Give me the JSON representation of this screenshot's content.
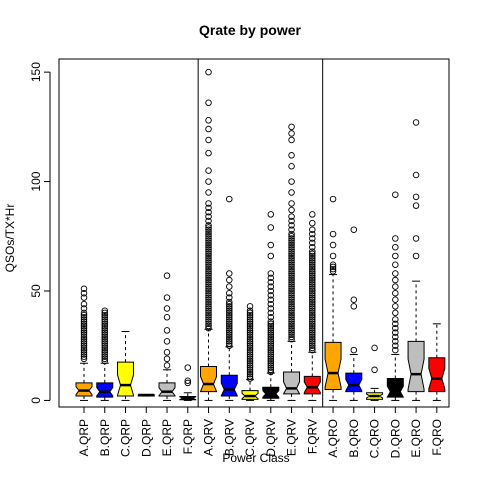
{
  "chart_data": {
    "type": "boxplot",
    "title": "Qrate by power",
    "xlabel": "Power Class",
    "ylabel": "QSOs/TX*Hr",
    "ylim": [
      -3,
      156
    ],
    "yticks": [
      0,
      50,
      100,
      150
    ],
    "notched": true,
    "group_separators_after": [
      6,
      12
    ],
    "categories": [
      {
        "label": "A.QRP",
        "color": "#FFA500",
        "whisker_low": 0,
        "q1": 2,
        "median": 4.5,
        "q3": 8,
        "whisker_high": 17,
        "outliers": [
          19,
          20,
          21,
          22,
          23,
          24,
          25,
          26,
          27,
          28,
          29,
          30,
          31,
          32,
          33,
          34,
          35,
          36,
          37,
          38,
          39,
          40,
          42,
          44,
          47,
          49,
          51
        ]
      },
      {
        "label": "B.QRP",
        "color": "#0000FF",
        "whisker_low": 0,
        "q1": 1.5,
        "median": 4,
        "q3": 8,
        "whisker_high": 17,
        "outliers": [
          18,
          19,
          20,
          21,
          22,
          23,
          24,
          25,
          26,
          27,
          28,
          29,
          30,
          31,
          32,
          33,
          34,
          35,
          36,
          37,
          38,
          39,
          40,
          41
        ]
      },
      {
        "label": "C.QRP",
        "color": "#FFFF00",
        "whisker_low": 0,
        "q1": 2,
        "median": 7,
        "q3": 17.5,
        "whisker_high": 31.5,
        "outliers": []
      },
      {
        "label": "D.QRP",
        "color": "#000000",
        "whisker_low": 2,
        "q1": 2,
        "median": 2.5,
        "q3": 2.5,
        "whisker_high": 2.5,
        "outliers": []
      },
      {
        "label": "E.QRP",
        "color": "#BEBEBE",
        "whisker_low": 0,
        "q1": 2,
        "median": 4,
        "q3": 8,
        "whisker_high": 14,
        "outliers": [
          16,
          19,
          22,
          27,
          32,
          38,
          42,
          47,
          57
        ]
      },
      {
        "label": "F.QRP",
        "color": "#FF0000",
        "whisker_low": 0,
        "q1": 0.3,
        "median": 1,
        "q3": 1.8,
        "whisker_high": 3.5,
        "outliers": [
          8,
          9,
          15
        ]
      },
      {
        "label": "A.QRV",
        "color": "#FFA500",
        "whisker_low": 0,
        "q1": 4,
        "median": 7.5,
        "q3": 15.5,
        "whisker_high": 32.5,
        "outliers": [
          33,
          34,
          35,
          36,
          37,
          38,
          39,
          40,
          41,
          42,
          43,
          44,
          45,
          46,
          47,
          48,
          49,
          50,
          51,
          52,
          53,
          54,
          55,
          56,
          57,
          58,
          59,
          60,
          61,
          62,
          63,
          64,
          65,
          66,
          67,
          68,
          69,
          70,
          71,
          72,
          73,
          74,
          75,
          76,
          77,
          78,
          79,
          80,
          82,
          84,
          86,
          88,
          90,
          95,
          100,
          105,
          113,
          119,
          124,
          128,
          136,
          150
        ]
      },
      {
        "label": "B.QRV",
        "color": "#0000FF",
        "whisker_low": 0,
        "q1": 2,
        "median": 5,
        "q3": 11.5,
        "whisker_high": 24.5,
        "outliers": [
          25,
          26,
          27,
          28,
          29,
          30,
          31,
          32,
          33,
          34,
          35,
          36,
          37,
          38,
          39,
          40,
          41,
          42,
          43,
          44,
          45,
          47,
          49,
          52,
          55,
          58,
          92
        ]
      },
      {
        "label": "C.QRV",
        "color": "#FFFF00",
        "whisker_low": 0,
        "q1": 0.5,
        "median": 2,
        "q3": 4.5,
        "whisker_high": 9.5,
        "outliers": [
          10,
          11,
          12,
          13,
          14,
          15,
          16,
          17,
          18,
          19,
          20,
          21,
          22,
          23,
          24,
          25,
          26,
          27,
          28,
          29,
          30,
          31,
          32,
          33,
          34,
          35,
          36,
          37,
          38,
          39,
          40,
          41,
          43
        ]
      },
      {
        "label": "D.QRV",
        "color": "#000000",
        "whisker_low": 0,
        "q1": 1,
        "median": 3,
        "q3": 6,
        "whisker_high": 12.5,
        "outliers": [
          13,
          14,
          15,
          16,
          17,
          18,
          19,
          20,
          21,
          22,
          23,
          24,
          25,
          26,
          27,
          28,
          29,
          30,
          31,
          32,
          33,
          34,
          35,
          36,
          38,
          40,
          42,
          44,
          46,
          48,
          50,
          52,
          54,
          56,
          58,
          66,
          71,
          79,
          85
        ]
      },
      {
        "label": "E.QRV",
        "color": "#BEBEBE",
        "whisker_low": 0,
        "q1": 3,
        "median": 5.5,
        "q3": 13,
        "whisker_high": 27,
        "outliers": [
          28,
          29,
          30,
          31,
          32,
          33,
          34,
          35,
          36,
          37,
          38,
          39,
          40,
          41,
          42,
          43,
          44,
          45,
          46,
          47,
          48,
          49,
          50,
          51,
          52,
          53,
          54,
          55,
          56,
          57,
          58,
          59,
          60,
          61,
          62,
          63,
          64,
          65,
          66,
          67,
          68,
          69,
          70,
          71,
          72,
          73,
          74,
          75,
          76,
          78,
          80,
          82,
          84,
          87,
          90,
          95,
          100,
          107,
          112,
          119,
          122,
          125
        ]
      },
      {
        "label": "F.QRV",
        "color": "#FF0000",
        "whisker_low": 0,
        "q1": 3,
        "median": 6,
        "q3": 11,
        "whisker_high": 22,
        "outliers": [
          23,
          24,
          25,
          26,
          27,
          28,
          29,
          30,
          31,
          32,
          33,
          34,
          35,
          36,
          37,
          38,
          39,
          40,
          41,
          42,
          43,
          44,
          45,
          46,
          47,
          48,
          49,
          50,
          51,
          52,
          53,
          54,
          55,
          56,
          57,
          58,
          59,
          60,
          61,
          62,
          63,
          64,
          65,
          66,
          67,
          68,
          70,
          72,
          74,
          76,
          78,
          81,
          85
        ]
      },
      {
        "label": "A.QRO",
        "color": "#FFA500",
        "whisker_low": 0,
        "q1": 5,
        "median": 12.5,
        "q3": 26.5,
        "whisker_high": 57.5,
        "outliers": [
          59,
          60,
          61,
          62,
          66,
          71,
          76,
          92
        ]
      },
      {
        "label": "B.QRO",
        "color": "#0000FF",
        "whisker_low": 0,
        "q1": 4,
        "median": 7,
        "q3": 12.5,
        "whisker_high": 21,
        "outliers": [
          23,
          43,
          46,
          78
        ]
      },
      {
        "label": "C.QRO",
        "color": "#FFFF00",
        "whisker_low": 0,
        "q1": 0.5,
        "median": 2,
        "q3": 3.5,
        "whisker_high": 5.5,
        "outliers": [
          14,
          24
        ]
      },
      {
        "label": "D.QRO",
        "color": "#000000",
        "whisker_low": 0,
        "q1": 1.5,
        "median": 4,
        "q3": 10,
        "whisker_high": 21,
        "outliers": [
          23,
          25,
          27,
          29,
          31,
          33,
          35,
          37,
          40,
          43,
          46,
          49,
          52,
          55,
          58,
          62,
          66,
          70,
          74,
          94
        ]
      },
      {
        "label": "E.QRO",
        "color": "#BEBEBE",
        "whisker_low": 0,
        "q1": 4,
        "median": 12,
        "q3": 27,
        "whisker_high": 54.5,
        "outliers": [
          66,
          74,
          89,
          93,
          103,
          127
        ]
      },
      {
        "label": "F.QRO",
        "color": "#FF0000",
        "whisker_low": 0,
        "q1": 4,
        "median": 10,
        "q3": 19.5,
        "whisker_high": 35,
        "outliers": []
      }
    ]
  }
}
